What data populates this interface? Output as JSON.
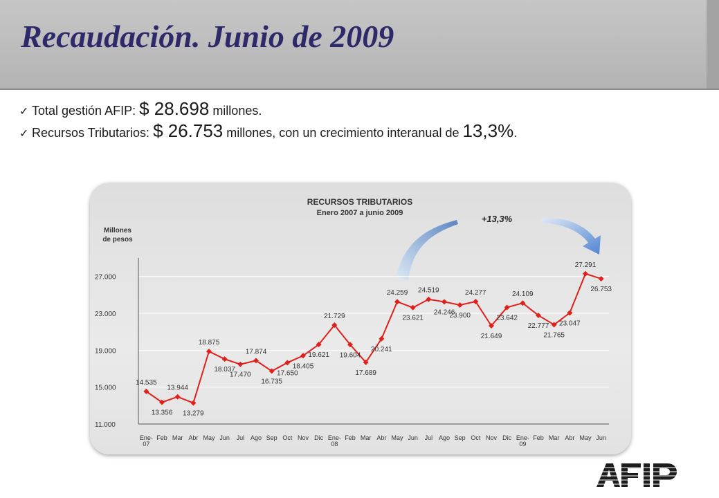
{
  "header": {
    "title": "Recaudación. Junio de 2009"
  },
  "bullets": [
    {
      "prefix": "Total gestión AFIP: ",
      "value": "$ 28.698",
      "suffix": " millones.",
      "value2": "",
      "suffix2": ""
    },
    {
      "prefix": "Recursos Tributarios: ",
      "value": "$ 26.753",
      "suffix": " millones, con un crecimiento interanual de ",
      "value2": "13,3%",
      "suffix2": "."
    }
  ],
  "logo": {
    "text": "AFIP"
  },
  "chart_data": {
    "type": "line",
    "title": "RECURSOS TRIBUTARIOS",
    "subtitle": "Enero 2007 a junio 2009",
    "ylabel": "Millones de pesos",
    "ylabel_lines": [
      "Millones",
      "de pesos"
    ],
    "ylim": [
      11000,
      29000
    ],
    "yticks": [
      11000,
      15000,
      19000,
      23000,
      27000
    ],
    "ytick_labels": [
      "11.000",
      "15.000",
      "19.000",
      "23.000",
      "27.000"
    ],
    "grid": true,
    "annotation": "+13,3%",
    "categories": [
      [
        "Ene-",
        "07"
      ],
      [
        "Feb"
      ],
      [
        "Mar"
      ],
      [
        "Abr"
      ],
      [
        "May"
      ],
      [
        "Jun"
      ],
      [
        "Jul"
      ],
      [
        "Ago"
      ],
      [
        "Sep"
      ],
      [
        "Oct"
      ],
      [
        "Nov"
      ],
      [
        "Dic"
      ],
      [
        "Ene-",
        "08"
      ],
      [
        "Feb"
      ],
      [
        "Mar"
      ],
      [
        "Abr"
      ],
      [
        "May"
      ],
      [
        "Jun"
      ],
      [
        "Jul"
      ],
      [
        "Ago"
      ],
      [
        "Sep"
      ],
      [
        "Oct"
      ],
      [
        "Nov"
      ],
      [
        "Dic"
      ],
      [
        "Ene-",
        "09"
      ],
      [
        "Feb"
      ],
      [
        "Mar"
      ],
      [
        "Abr"
      ],
      [
        "May"
      ],
      [
        "Jun"
      ]
    ],
    "values": [
      14535,
      13356,
      13944,
      13279,
      18875,
      18037,
      17470,
      17874,
      16735,
      17650,
      18405,
      19621,
      21729,
      19604,
      17689,
      20241,
      24259,
      23621,
      24519,
      24246,
      23900,
      24277,
      21649,
      23642,
      24109,
      22777,
      21765,
      23047,
      27291,
      26753
    ],
    "labels": [
      "14.535",
      "13.356",
      "13.944",
      "13.279",
      "18.875",
      "18.037",
      "17.470",
      "17.874",
      "16.735",
      "17.650",
      "18.405",
      "19.621",
      "21.729",
      "19.604",
      "17.689",
      "20.241",
      "24.259",
      "23.621",
      "24.519",
      "24.246",
      "23.900",
      "24.277",
      "21.649",
      "23.642",
      "24.109",
      "22.777",
      "21.765",
      "23.047",
      "27.291",
      "26.753"
    ],
    "line_color": "#e0201a",
    "arrow_color": "#6f9bd1"
  }
}
